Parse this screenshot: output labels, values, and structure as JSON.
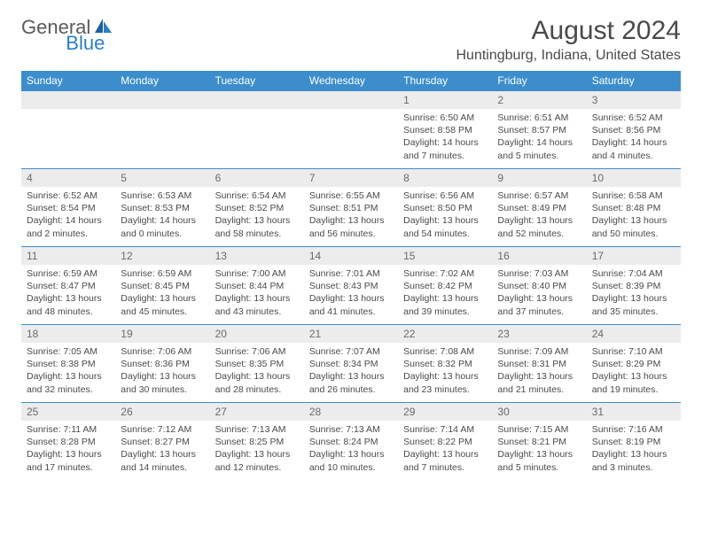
{
  "logo": {
    "text1": "General",
    "text2": "Blue"
  },
  "title": "August 2024",
  "location": "Huntingburg, Indiana, United States",
  "colors": {
    "header_bg": "#3c8dcc",
    "header_text": "#ffffff",
    "daynum_bg": "#ececec",
    "border": "#3c8dcc",
    "logo_blue": "#2a7fc7",
    "text": "#4a4a4a"
  },
  "day_headers": [
    "Sunday",
    "Monday",
    "Tuesday",
    "Wednesday",
    "Thursday",
    "Friday",
    "Saturday"
  ],
  "weeks": [
    [
      null,
      null,
      null,
      null,
      {
        "n": "1",
        "sr": "Sunrise: 6:50 AM",
        "ss": "Sunset: 8:58 PM",
        "d1": "Daylight: 14 hours",
        "d2": "and 7 minutes."
      },
      {
        "n": "2",
        "sr": "Sunrise: 6:51 AM",
        "ss": "Sunset: 8:57 PM",
        "d1": "Daylight: 14 hours",
        "d2": "and 5 minutes."
      },
      {
        "n": "3",
        "sr": "Sunrise: 6:52 AM",
        "ss": "Sunset: 8:56 PM",
        "d1": "Daylight: 14 hours",
        "d2": "and 4 minutes."
      }
    ],
    [
      {
        "n": "4",
        "sr": "Sunrise: 6:52 AM",
        "ss": "Sunset: 8:54 PM",
        "d1": "Daylight: 14 hours",
        "d2": "and 2 minutes."
      },
      {
        "n": "5",
        "sr": "Sunrise: 6:53 AM",
        "ss": "Sunset: 8:53 PM",
        "d1": "Daylight: 14 hours",
        "d2": "and 0 minutes."
      },
      {
        "n": "6",
        "sr": "Sunrise: 6:54 AM",
        "ss": "Sunset: 8:52 PM",
        "d1": "Daylight: 13 hours",
        "d2": "and 58 minutes."
      },
      {
        "n": "7",
        "sr": "Sunrise: 6:55 AM",
        "ss": "Sunset: 8:51 PM",
        "d1": "Daylight: 13 hours",
        "d2": "and 56 minutes."
      },
      {
        "n": "8",
        "sr": "Sunrise: 6:56 AM",
        "ss": "Sunset: 8:50 PM",
        "d1": "Daylight: 13 hours",
        "d2": "and 54 minutes."
      },
      {
        "n": "9",
        "sr": "Sunrise: 6:57 AM",
        "ss": "Sunset: 8:49 PM",
        "d1": "Daylight: 13 hours",
        "d2": "and 52 minutes."
      },
      {
        "n": "10",
        "sr": "Sunrise: 6:58 AM",
        "ss": "Sunset: 8:48 PM",
        "d1": "Daylight: 13 hours",
        "d2": "and 50 minutes."
      }
    ],
    [
      {
        "n": "11",
        "sr": "Sunrise: 6:59 AM",
        "ss": "Sunset: 8:47 PM",
        "d1": "Daylight: 13 hours",
        "d2": "and 48 minutes."
      },
      {
        "n": "12",
        "sr": "Sunrise: 6:59 AM",
        "ss": "Sunset: 8:45 PM",
        "d1": "Daylight: 13 hours",
        "d2": "and 45 minutes."
      },
      {
        "n": "13",
        "sr": "Sunrise: 7:00 AM",
        "ss": "Sunset: 8:44 PM",
        "d1": "Daylight: 13 hours",
        "d2": "and 43 minutes."
      },
      {
        "n": "14",
        "sr": "Sunrise: 7:01 AM",
        "ss": "Sunset: 8:43 PM",
        "d1": "Daylight: 13 hours",
        "d2": "and 41 minutes."
      },
      {
        "n": "15",
        "sr": "Sunrise: 7:02 AM",
        "ss": "Sunset: 8:42 PM",
        "d1": "Daylight: 13 hours",
        "d2": "and 39 minutes."
      },
      {
        "n": "16",
        "sr": "Sunrise: 7:03 AM",
        "ss": "Sunset: 8:40 PM",
        "d1": "Daylight: 13 hours",
        "d2": "and 37 minutes."
      },
      {
        "n": "17",
        "sr": "Sunrise: 7:04 AM",
        "ss": "Sunset: 8:39 PM",
        "d1": "Daylight: 13 hours",
        "d2": "and 35 minutes."
      }
    ],
    [
      {
        "n": "18",
        "sr": "Sunrise: 7:05 AM",
        "ss": "Sunset: 8:38 PM",
        "d1": "Daylight: 13 hours",
        "d2": "and 32 minutes."
      },
      {
        "n": "19",
        "sr": "Sunrise: 7:06 AM",
        "ss": "Sunset: 8:36 PM",
        "d1": "Daylight: 13 hours",
        "d2": "and 30 minutes."
      },
      {
        "n": "20",
        "sr": "Sunrise: 7:06 AM",
        "ss": "Sunset: 8:35 PM",
        "d1": "Daylight: 13 hours",
        "d2": "and 28 minutes."
      },
      {
        "n": "21",
        "sr": "Sunrise: 7:07 AM",
        "ss": "Sunset: 8:34 PM",
        "d1": "Daylight: 13 hours",
        "d2": "and 26 minutes."
      },
      {
        "n": "22",
        "sr": "Sunrise: 7:08 AM",
        "ss": "Sunset: 8:32 PM",
        "d1": "Daylight: 13 hours",
        "d2": "and 23 minutes."
      },
      {
        "n": "23",
        "sr": "Sunrise: 7:09 AM",
        "ss": "Sunset: 8:31 PM",
        "d1": "Daylight: 13 hours",
        "d2": "and 21 minutes."
      },
      {
        "n": "24",
        "sr": "Sunrise: 7:10 AM",
        "ss": "Sunset: 8:29 PM",
        "d1": "Daylight: 13 hours",
        "d2": "and 19 minutes."
      }
    ],
    [
      {
        "n": "25",
        "sr": "Sunrise: 7:11 AM",
        "ss": "Sunset: 8:28 PM",
        "d1": "Daylight: 13 hours",
        "d2": "and 17 minutes."
      },
      {
        "n": "26",
        "sr": "Sunrise: 7:12 AM",
        "ss": "Sunset: 8:27 PM",
        "d1": "Daylight: 13 hours",
        "d2": "and 14 minutes."
      },
      {
        "n": "27",
        "sr": "Sunrise: 7:13 AM",
        "ss": "Sunset: 8:25 PM",
        "d1": "Daylight: 13 hours",
        "d2": "and 12 minutes."
      },
      {
        "n": "28",
        "sr": "Sunrise: 7:13 AM",
        "ss": "Sunset: 8:24 PM",
        "d1": "Daylight: 13 hours",
        "d2": "and 10 minutes."
      },
      {
        "n": "29",
        "sr": "Sunrise: 7:14 AM",
        "ss": "Sunset: 8:22 PM",
        "d1": "Daylight: 13 hours",
        "d2": "and 7 minutes."
      },
      {
        "n": "30",
        "sr": "Sunrise: 7:15 AM",
        "ss": "Sunset: 8:21 PM",
        "d1": "Daylight: 13 hours",
        "d2": "and 5 minutes."
      },
      {
        "n": "31",
        "sr": "Sunrise: 7:16 AM",
        "ss": "Sunset: 8:19 PM",
        "d1": "Daylight: 13 hours",
        "d2": "and 3 minutes."
      }
    ]
  ]
}
